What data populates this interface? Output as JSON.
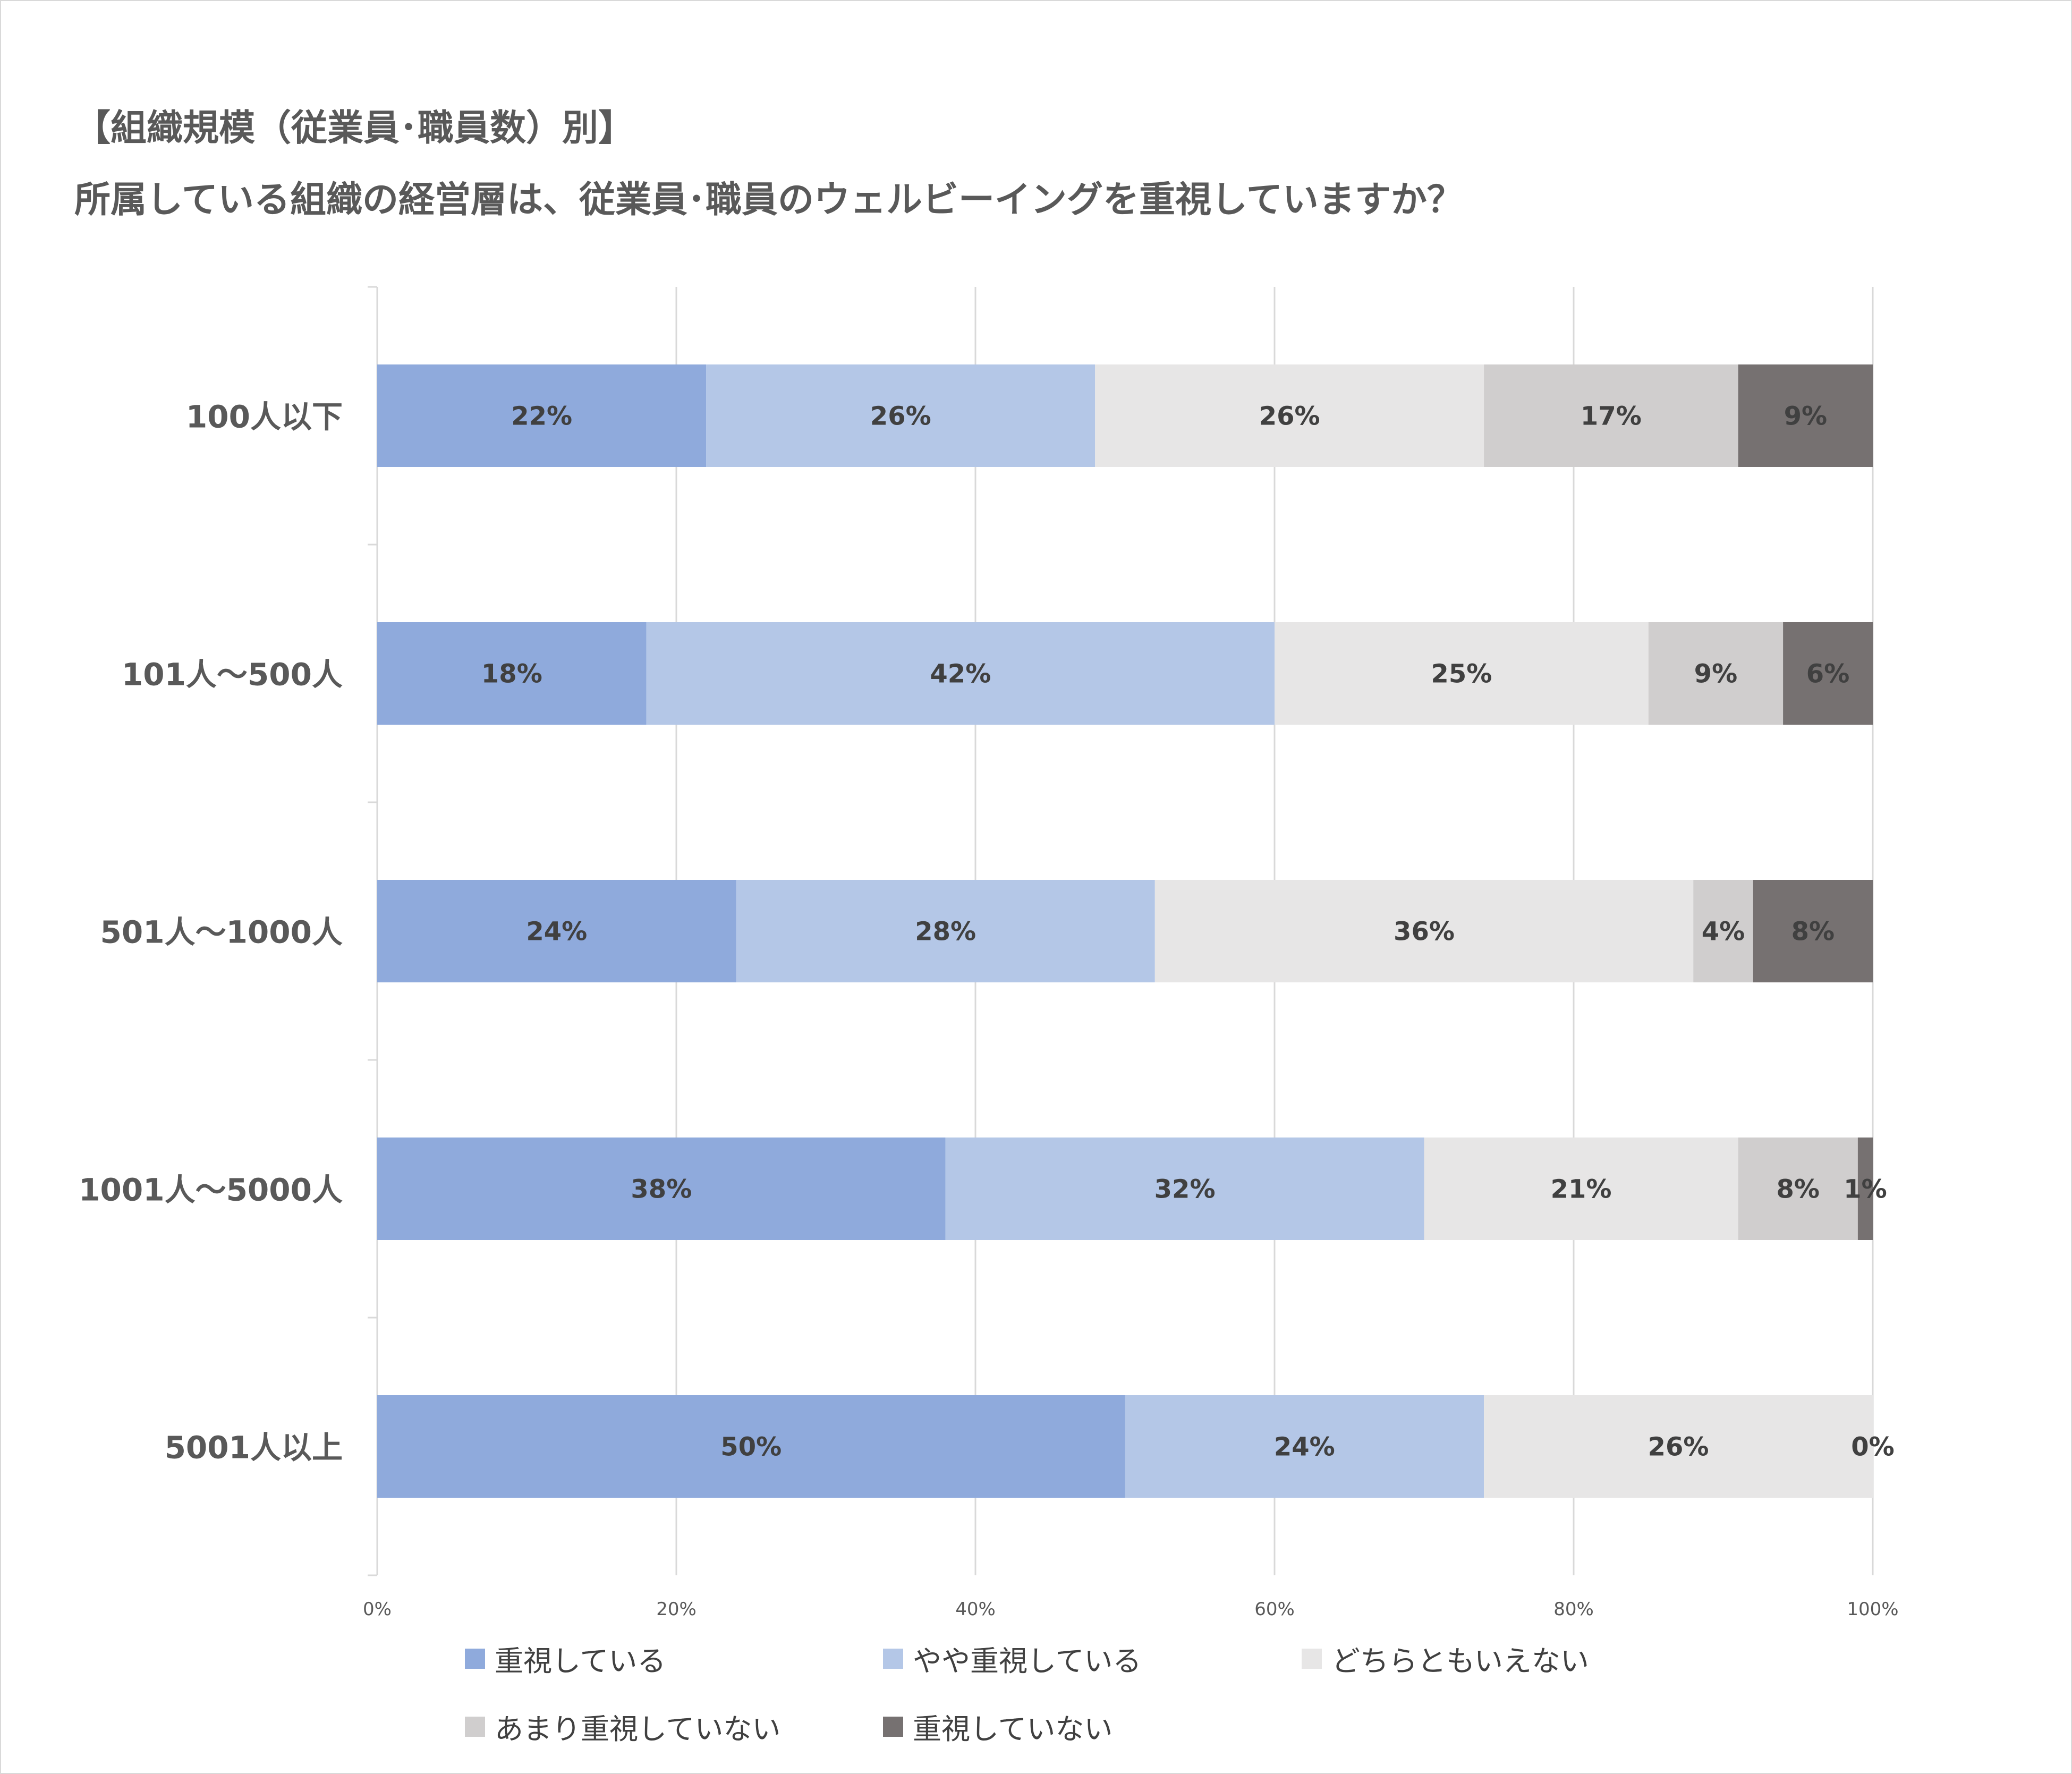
{
  "chart_data": {
    "type": "bar",
    "orientation": "horizontal",
    "stacked": true,
    "title_lines": [
      "【組織規模（従業員･職員数）別】",
      "所属している組織の経営層は、従業員･職員のウェルビーイングを重視していますか？"
    ],
    "categories": [
      "100人以下",
      "101人～500人",
      "501人～1000人",
      "1001人～5000人",
      "5001人以上"
    ],
    "series": [
      {
        "name": "重視している",
        "color": "#8faadc",
        "values": [
          22,
          18,
          24,
          38,
          50
        ],
        "labels": [
          "22%",
          "18%",
          "24%",
          "38%",
          "50%"
        ]
      },
      {
        "name": "やや重視している",
        "color": "#b4c7e7",
        "values": [
          26,
          42,
          28,
          32,
          24
        ],
        "labels": [
          "26%",
          "42%",
          "28%",
          "32%",
          "24%"
        ]
      },
      {
        "name": "どちらともいえない",
        "color": "#e7e6e6",
        "values": [
          26,
          25,
          36,
          21,
          26
        ],
        "labels": [
          "26%",
          "25%",
          "36%",
          "21%",
          "26%"
        ]
      },
      {
        "name": "あまり重視していない",
        "color": "#d0cece",
        "values": [
          17,
          9,
          4,
          8,
          0
        ],
        "labels": [
          "17%",
          "9%",
          "4%",
          "8%",
          ""
        ]
      },
      {
        "name": "重視していない",
        "color": "#767171",
        "values": [
          9,
          6,
          8,
          1,
          0
        ],
        "labels": [
          "9%",
          "6%",
          "8%",
          "1%",
          "0%"
        ]
      }
    ],
    "xlim": [
      0,
      100
    ],
    "xticks": [
      0,
      20,
      40,
      60,
      80,
      100
    ],
    "xtick_labels": [
      "0%",
      "20%",
      "40%",
      "60%",
      "80%",
      "100%"
    ],
    "grid": true,
    "legend_position": "bottom"
  }
}
